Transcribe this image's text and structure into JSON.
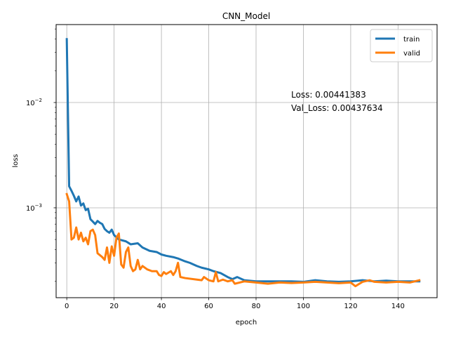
{
  "chart_data": {
    "type": "line",
    "title": "CNN_Model",
    "xlabel": "epoch",
    "ylabel": "loss",
    "yscale": "log",
    "xlim": [
      -4.5,
      156.5
    ],
    "ylim": [
      0.00014,
      0.055
    ],
    "grid": true,
    "legend_position": "top-right",
    "x_ticks": [
      0,
      20,
      40,
      60,
      80,
      100,
      120,
      140
    ],
    "x_tick_labels": [
      "0",
      "20",
      "40",
      "60",
      "80",
      "100",
      "120",
      "140"
    ],
    "y_ticks": [
      0.001,
      0.01
    ],
    "y_tick_labels": [
      {
        "base": "10",
        "exp": "−3"
      },
      {
        "base": "10",
        "exp": "−2"
      }
    ],
    "annotations": [
      "Loss: 0.00441383",
      "Val_Loss: 0.00437634"
    ],
    "series": [
      {
        "name": "train",
        "color": "#1f77b4",
        "points": [
          [
            0,
            0.04
          ],
          [
            1,
            0.0016
          ],
          [
            2,
            0.00145
          ],
          [
            3,
            0.0013
          ],
          [
            4,
            0.00115
          ],
          [
            5,
            0.00128
          ],
          [
            6,
            0.00105
          ],
          [
            7,
            0.0011
          ],
          [
            8,
            0.00095
          ],
          [
            9,
            0.00098
          ],
          [
            10,
            0.00078
          ],
          [
            11,
            0.00074
          ],
          [
            12,
            0.0007
          ],
          [
            13,
            0.00075
          ],
          [
            14,
            0.00072
          ],
          [
            15,
            0.0007
          ],
          [
            16,
            0.00063
          ],
          [
            17,
            0.0006
          ],
          [
            18,
            0.00058
          ],
          [
            19,
            0.00062
          ],
          [
            20,
            0.00055
          ],
          [
            22,
            0.0005
          ],
          [
            25,
            0.00048
          ],
          [
            27,
            0.00045
          ],
          [
            30,
            0.00046
          ],
          [
            32,
            0.00042
          ],
          [
            35,
            0.00039
          ],
          [
            38,
            0.00038
          ],
          [
            40,
            0.00036
          ],
          [
            42,
            0.00035
          ],
          [
            45,
            0.00034
          ],
          [
            47,
            0.00033
          ],
          [
            50,
            0.00031
          ],
          [
            52,
            0.0003
          ],
          [
            55,
            0.00028
          ],
          [
            57,
            0.00027
          ],
          [
            60,
            0.00026
          ],
          [
            62,
            0.00025
          ],
          [
            65,
            0.00024
          ],
          [
            68,
            0.00022
          ],
          [
            70,
            0.00021
          ],
          [
            72,
            0.00022
          ],
          [
            75,
            0.000205
          ],
          [
            80,
            0.0002
          ],
          [
            85,
            0.0002
          ],
          [
            90,
            0.0002
          ],
          [
            95,
            0.0002
          ],
          [
            100,
            0.000198
          ],
          [
            105,
            0.000205
          ],
          [
            110,
            0.0002
          ],
          [
            115,
            0.000198
          ],
          [
            120,
            0.0002
          ],
          [
            125,
            0.000205
          ],
          [
            130,
            0.0002
          ],
          [
            135,
            0.000203
          ],
          [
            140,
            0.0002
          ],
          [
            145,
            0.0002
          ],
          [
            149,
            0.0002
          ]
        ]
      },
      {
        "name": "valid",
        "color": "#ff7f0e",
        "points": [
          [
            0,
            0.00135
          ],
          [
            1,
            0.00115
          ],
          [
            2,
            0.0005
          ],
          [
            3,
            0.00052
          ],
          [
            4,
            0.00065
          ],
          [
            5,
            0.0005
          ],
          [
            6,
            0.00058
          ],
          [
            7,
            0.00048
          ],
          [
            8,
            0.00052
          ],
          [
            9,
            0.00045
          ],
          [
            10,
            0.0006
          ],
          [
            11,
            0.00062
          ],
          [
            12,
            0.00055
          ],
          [
            13,
            0.00037
          ],
          [
            15,
            0.00034
          ],
          [
            16,
            0.00032
          ],
          [
            17,
            0.00042
          ],
          [
            18,
            0.0003
          ],
          [
            19,
            0.00043
          ],
          [
            20,
            0.00035
          ],
          [
            21,
            0.00052
          ],
          [
            22,
            0.00057
          ],
          [
            23,
            0.00029
          ],
          [
            24,
            0.00027
          ],
          [
            25,
            0.00038
          ],
          [
            26,
            0.00042
          ],
          [
            27,
            0.00028
          ],
          [
            28,
            0.00025
          ],
          [
            29,
            0.00026
          ],
          [
            30,
            0.00032
          ],
          [
            31,
            0.00026
          ],
          [
            32,
            0.00028
          ],
          [
            34,
            0.00026
          ],
          [
            36,
            0.00025
          ],
          [
            38,
            0.00025
          ],
          [
            39,
            0.00023
          ],
          [
            40,
            0.000225
          ],
          [
            41,
            0.000245
          ],
          [
            42,
            0.000235
          ],
          [
            44,
            0.00025
          ],
          [
            45,
            0.00023
          ],
          [
            46,
            0.00025
          ],
          [
            47,
            0.0003
          ],
          [
            48,
            0.00022
          ],
          [
            50,
            0.000215
          ],
          [
            55,
            0.000208
          ],
          [
            57,
            0.000205
          ],
          [
            58,
            0.00022
          ],
          [
            60,
            0.000205
          ],
          [
            62,
            0.0002
          ],
          [
            63,
            0.000245
          ],
          [
            64,
            0.0002
          ],
          [
            66,
            0.000208
          ],
          [
            68,
            0.0002
          ],
          [
            70,
            0.000205
          ],
          [
            71,
            0.00019
          ],
          [
            75,
            0.0002
          ],
          [
            80,
            0.000195
          ],
          [
            85,
            0.00019
          ],
          [
            90,
            0.000195
          ],
          [
            95,
            0.000193
          ],
          [
            100,
            0.000195
          ],
          [
            105,
            0.000198
          ],
          [
            110,
            0.000195
          ],
          [
            115,
            0.000192
          ],
          [
            120,
            0.000195
          ],
          [
            122,
            0.00018
          ],
          [
            125,
            0.000198
          ],
          [
            128,
            0.000205
          ],
          [
            130,
            0.000198
          ],
          [
            135,
            0.000195
          ],
          [
            140,
            0.000198
          ],
          [
            145,
            0.000195
          ],
          [
            149,
            0.000205
          ]
        ]
      }
    ]
  }
}
